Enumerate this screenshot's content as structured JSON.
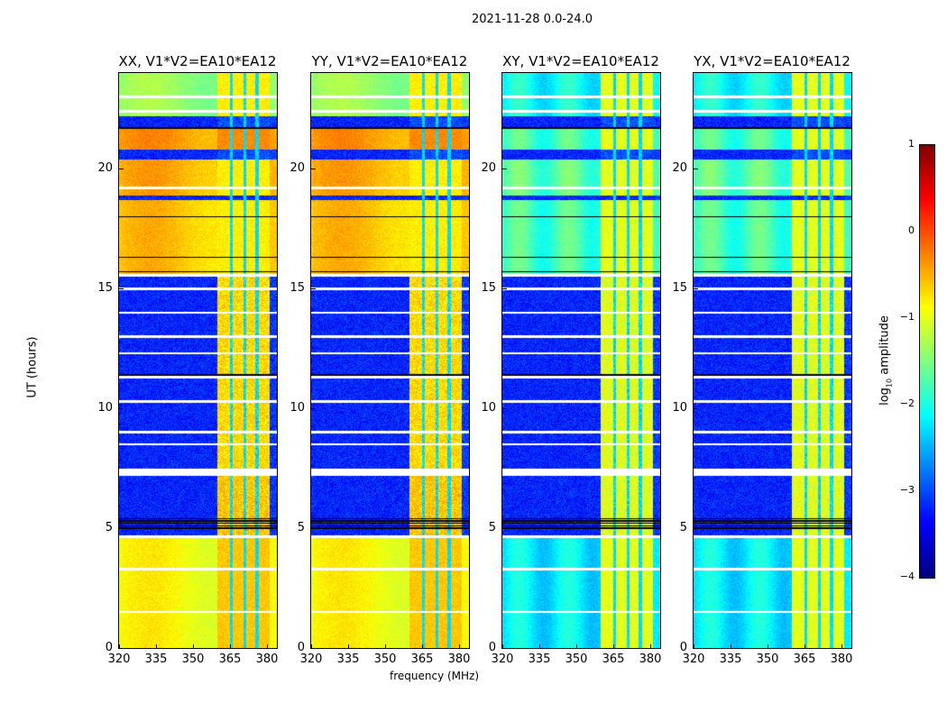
{
  "chart_data": {
    "type": "heatmap",
    "title": "2021-11-28 0.0-24.0",
    "xlabel": "frequency (MHz)",
    "ylabel": "UT (hours)",
    "xlim": [
      320,
      384
    ],
    "ylim": [
      0,
      24
    ],
    "xticks": [
      "320",
      "335",
      "350",
      "365",
      "380"
    ],
    "xtick_values": [
      320,
      335,
      350,
      365,
      380
    ],
    "yticks": [
      "0",
      "5",
      "10",
      "15",
      "20"
    ],
    "ytick_values": [
      0,
      5,
      10,
      15,
      20
    ],
    "panels": [
      {
        "title": "XX, V1*V2=EA10*EA12",
        "kind": "parallel"
      },
      {
        "title": "YY, V1*V2=EA10*EA12",
        "kind": "parallel"
      },
      {
        "title": "XY, V1*V2=EA10*EA12",
        "kind": "cross"
      },
      {
        "title": "YX, V1*V2=EA10*EA12",
        "kind": "cross"
      }
    ],
    "colorbar": {
      "label_main": "log",
      "label_sub": "10",
      "label_rest": " amplitude",
      "range": [
        -4,
        1
      ],
      "ticks": [
        "1",
        "0",
        "−1",
        "−2",
        "−3",
        "−4"
      ],
      "tick_values": [
        1,
        0,
        -1,
        -2,
        -3,
        -4
      ],
      "colormap": "jet"
    },
    "high_band_MHz": [
      360,
      381
    ],
    "blue_stripes_MHz": [
      365.5,
      371,
      376
    ],
    "time_segments": [
      {
        "start": 0,
        "end": 4.7,
        "parallel": -0.9,
        "cross": -2.2,
        "high_parallel": -0.6,
        "high_cross": -1.0
      },
      {
        "start": 4.7,
        "end": 7.2,
        "parallel": -3.2,
        "cross": -3.2,
        "high_parallel": -0.6,
        "high_cross": -1.0
      },
      {
        "start": 7.2,
        "end": 7.5,
        "gap": true
      },
      {
        "start": 7.5,
        "end": 15.6,
        "parallel": -3.2,
        "cross": -3.2,
        "high_parallel": -0.7,
        "high_cross": -1.0
      },
      {
        "start": 15.6,
        "end": 18.7,
        "parallel": -0.6,
        "cross": -1.8,
        "high_parallel": -0.8,
        "high_cross": -1.0
      },
      {
        "start": 18.7,
        "end": 18.9,
        "parallel": -3.2,
        "cross": -3.2,
        "high_parallel": -3.2,
        "high_cross": -3.2
      },
      {
        "start": 18.9,
        "end": 20.4,
        "parallel": -0.5,
        "cross": -1.7,
        "high_parallel": -0.8,
        "high_cross": -1.0
      },
      {
        "start": 20.4,
        "end": 20.8,
        "parallel": -3.2,
        "cross": -3.2,
        "high_parallel": -3.0,
        "high_cross": -3.0
      },
      {
        "start": 20.8,
        "end": 21.75,
        "parallel": -0.4,
        "cross": -1.8,
        "high_parallel": -0.3,
        "high_cross": -1.0
      },
      {
        "start": 21.75,
        "end": 22.2,
        "parallel": -3.2,
        "cross": -3.2,
        "high_parallel": -3.0,
        "high_cross": -3.0
      },
      {
        "start": 22.2,
        "end": 24,
        "parallel": -1.4,
        "cross": -2.1,
        "high_parallel": -0.8,
        "high_cross": -1.0
      }
    ],
    "flagged_white_hours": [
      1.5,
      3.3,
      4.65,
      7.3,
      8.5,
      9.0,
      10.3,
      11.3,
      12.3,
      13.0,
      14.0,
      15.0,
      15.55,
      19.2,
      22.4,
      23.0
    ],
    "flagged_black_hours": [
      5.0,
      5.1,
      5.2,
      5.3,
      5.4,
      11.4,
      15.7,
      16.3,
      18.0,
      21.7
    ]
  }
}
